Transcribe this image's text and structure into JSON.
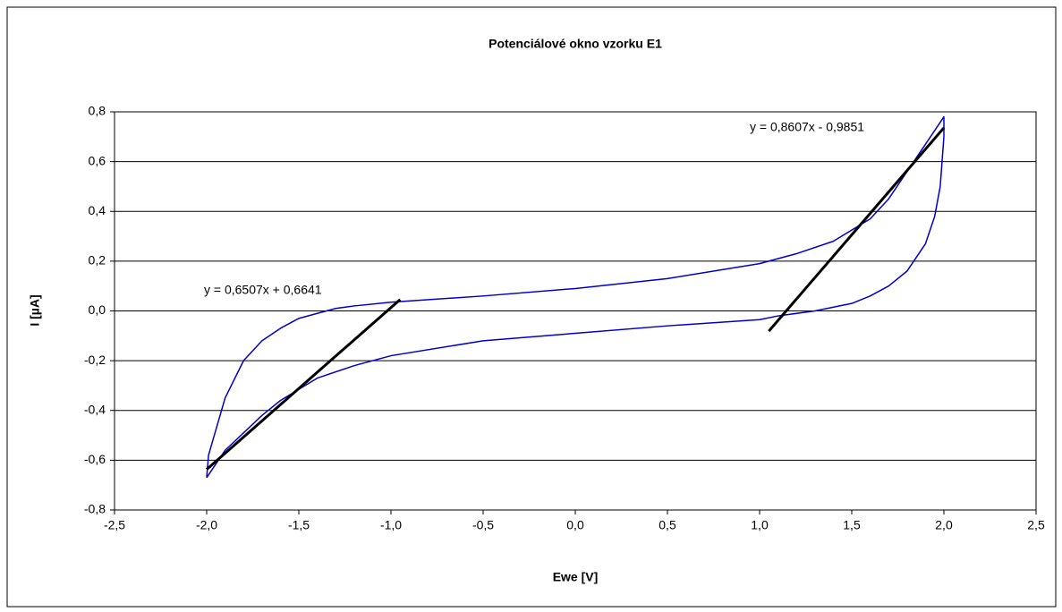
{
  "chart_data": {
    "type": "line",
    "title": "Potenciálové okno vzorku E1",
    "x_label": "Ewe [V]",
    "y_label": "I [µA]",
    "xlim": [
      -2.5,
      2.5
    ],
    "ylim": [
      -0.8,
      0.8
    ],
    "xticks": [
      {
        "value": -2.5,
        "label": "-2,5"
      },
      {
        "value": -2.0,
        "label": "-2,0"
      },
      {
        "value": -1.5,
        "label": "-1,5"
      },
      {
        "value": -1.0,
        "label": "-1,0"
      },
      {
        "value": -0.5,
        "label": "-0,5"
      },
      {
        "value": 0,
        "label": "0,0"
      },
      {
        "value": 0.5,
        "label": "0,5"
      },
      {
        "value": 1.0,
        "label": "1,0"
      },
      {
        "value": 1.5,
        "label": "1,5"
      },
      {
        "value": 2.0,
        "label": "2,0"
      },
      {
        "value": 2.5,
        "label": "2,5"
      }
    ],
    "yticks": [
      {
        "value": -0.8,
        "label": "-0,8"
      },
      {
        "value": -0.6,
        "label": "-0,6"
      },
      {
        "value": -0.4,
        "label": "-0,4"
      },
      {
        "value": -0.2,
        "label": "-0,2"
      },
      {
        "value": 0,
        "label": "0,0"
      },
      {
        "value": 0.2,
        "label": "0,2"
      },
      {
        "value": 0.4,
        "label": "0,4"
      },
      {
        "value": 0.6,
        "label": "0,6"
      },
      {
        "value": 0.8,
        "label": "0,8"
      }
    ],
    "grid": true,
    "series": [
      {
        "color": "#0000cc",
        "width": 1.5,
        "x": [
          -2.0,
          -1.99,
          -1.9,
          -1.8,
          -1.7,
          -1.6,
          -1.5,
          -1.4,
          -1.3,
          -1.2,
          -1.0,
          -0.5,
          0,
          0.5,
          1.0,
          1.2,
          1.4,
          1.6,
          1.7,
          1.8,
          1.9,
          2.0,
          2.0,
          1.98,
          1.95,
          1.9,
          1.8,
          1.7,
          1.6,
          1.5,
          1.3,
          1.1,
          1.0,
          0.5,
          0,
          -0.5,
          -1.0,
          -1.2,
          -1.4,
          -1.6,
          -1.7,
          -1.8,
          -1.9,
          -2.0
        ],
        "values": [
          -0.67,
          -0.58,
          -0.35,
          -0.2,
          -0.12,
          -0.07,
          -0.03,
          -0.01,
          0.01,
          0.02,
          0.035,
          0.06,
          0.09,
          0.13,
          0.19,
          0.23,
          0.28,
          0.37,
          0.45,
          0.56,
          0.67,
          0.78,
          0.7,
          0.5,
          0.38,
          0.27,
          0.16,
          0.1,
          0.06,
          0.03,
          0.0,
          -0.02,
          -0.035,
          -0.06,
          -0.09,
          -0.12,
          -0.18,
          -0.22,
          -0.27,
          -0.36,
          -0.42,
          -0.49,
          -0.56,
          -0.67
        ]
      },
      {
        "color": "#000000",
        "width": 3,
        "x": [
          -2.0,
          -0.95
        ],
        "values": [
          -0.637,
          0.046
        ]
      },
      {
        "color": "#000000",
        "width": 3,
        "x": [
          1.05,
          2.0
        ],
        "values": [
          -0.0814,
          0.736
        ]
      }
    ],
    "annotations": [
      "y = 0,6507x + 0,6641",
      "y = 0,8607x - 0,9851"
    ]
  }
}
